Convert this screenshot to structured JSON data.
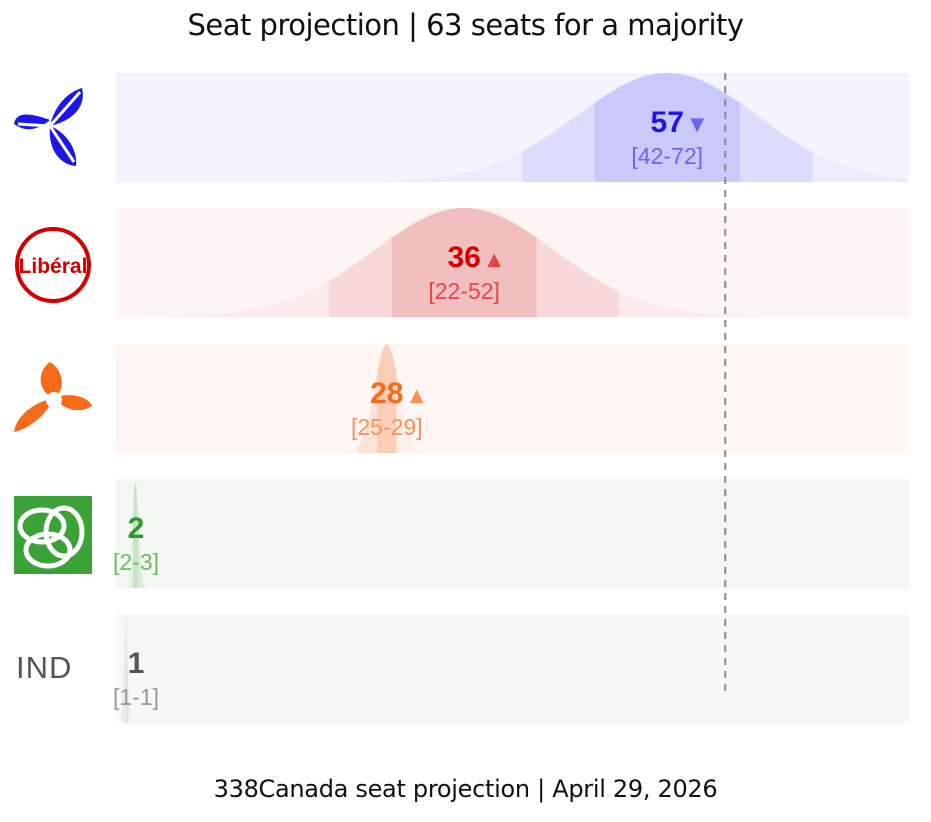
{
  "title": "Seat projection | 63 seats for a majority",
  "footer": "338Canada seat projection | April 29, 2026",
  "chart_data": {
    "type": "bar",
    "title": "Seat projection | 63 seats for a majority",
    "majority_line": 63,
    "xlim": [
      0,
      82
    ],
    "grid": false,
    "series": [
      {
        "party_label": "",
        "logo": "trillium-blue-icon",
        "value": 57,
        "trend": "▼",
        "range": "[42-72]",
        "low": 42,
        "high": 72,
        "color": "#1c16e8",
        "bg": "#f4f4fe",
        "band": "#dcdcfc",
        "core": "#c9c9fb",
        "range_color": "#6a66f0",
        "trend_color": "#6a66f0"
      },
      {
        "party_label": "",
        "logo": "liberal-icon",
        "logo_text": "Libéral",
        "value": 36,
        "trend": "▲",
        "range": "[22-52]",
        "low": 22,
        "high": 52,
        "color": "#d40000",
        "bg": "#fdf4f4",
        "band": "#f8d9da",
        "core": "#f2bfc0",
        "range_color": "#e04848",
        "trend_color": "#e04848"
      },
      {
        "party_label": "",
        "logo": "trillium-orange-icon",
        "value": 28,
        "trend": "▲",
        "range": "[25-29]",
        "low": 25,
        "high": 29,
        "color": "#f76a1a",
        "bg": "#fff7f3",
        "band": "#fde3d6",
        "core": "#fbcfb7",
        "range_color": "#f6925a",
        "trend_color": "#f6925a"
      },
      {
        "party_label": "",
        "logo": "green-trillium-icon",
        "value": 2,
        "trend": "",
        "range": "[2-3]",
        "low": 2,
        "high": 3,
        "color": "#2e9a2e",
        "bg": "#f3f9f2",
        "band": "#d8ecd6",
        "core": "#c8e3c5",
        "range_color": "#6bbb67",
        "trend_color": "#6bbb67"
      },
      {
        "party_label": "IND",
        "logo": "",
        "value": 1,
        "trend": "",
        "range": "[1-1]",
        "low": 1,
        "high": 1,
        "color": "#555555",
        "bg": "#f7f7f7",
        "band": "#ececec",
        "core": "#e2e2e2",
        "range_color": "#999999",
        "trend_color": "#999999"
      }
    ]
  }
}
